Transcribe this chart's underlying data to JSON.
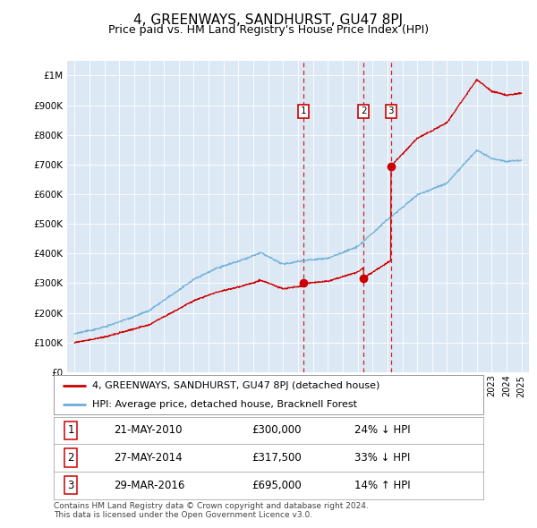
{
  "title": "4, GREENWAYS, SANDHURST, GU47 8PJ",
  "subtitle": "Price paid vs. HM Land Registry's House Price Index (HPI)",
  "title_fontsize": 11,
  "subtitle_fontsize": 9,
  "background_color": "#ffffff",
  "plot_bg_color": "#dce9f5",
  "ylim": [
    0,
    1050000
  ],
  "yticks": [
    0,
    100000,
    200000,
    300000,
    400000,
    500000,
    600000,
    700000,
    800000,
    900000,
    1000000
  ],
  "ytick_labels": [
    "£0",
    "£100K",
    "£200K",
    "£300K",
    "£400K",
    "£500K",
    "£600K",
    "£700K",
    "£800K",
    "£900K",
    "£1M"
  ],
  "hpi_color": "#6baed6",
  "price_color": "#cc0000",
  "dashed_line_color": "#cc0000",
  "transactions": [
    {
      "date_num": 2010.38,
      "price": 300000,
      "label": "1"
    },
    {
      "date_num": 2014.4,
      "price": 317500,
      "label": "2"
    },
    {
      "date_num": 2016.24,
      "price": 695000,
      "label": "3"
    }
  ],
  "transaction_details": [
    {
      "label": "1",
      "date": "21-MAY-2010",
      "price": "£300,000",
      "hpi": "24% ↓ HPI"
    },
    {
      "label": "2",
      "date": "27-MAY-2014",
      "price": "£317,500",
      "hpi": "33% ↓ HPI"
    },
    {
      "label": "3",
      "date": "29-MAR-2016",
      "price": "£695,000",
      "hpi": "14% ↑ HPI"
    }
  ],
  "legend_entries": [
    {
      "label": "4, GREENWAYS, SANDHURST, GU47 8PJ (detached house)",
      "color": "#cc0000"
    },
    {
      "label": "HPI: Average price, detached house, Bracknell Forest",
      "color": "#6baed6"
    }
  ],
  "footnote": "Contains HM Land Registry data © Crown copyright and database right 2024.\nThis data is licensed under the Open Government Licence v3.0.",
  "xmin": 1994.5,
  "xmax": 2025.5
}
